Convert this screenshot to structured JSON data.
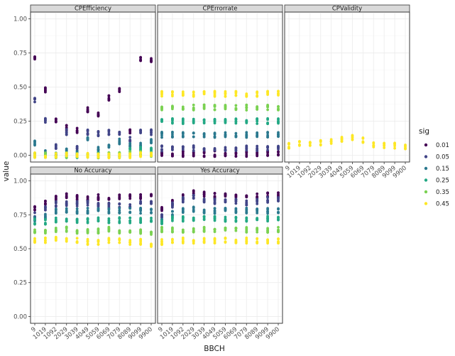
{
  "chart_data": {
    "type": "scatter",
    "xlabel": "BBCH",
    "ylabel": "value",
    "categories": [
      "9",
      "1019",
      "1092",
      "2029",
      "3039",
      "4049",
      "5059",
      "6069",
      "7079",
      "8089",
      "9099",
      "9900"
    ],
    "ylim": [
      -0.05,
      1.05
    ],
    "yticks": [
      "0.00",
      "0.25",
      "0.50",
      "0.75",
      "1.00"
    ],
    "grid": true,
    "legend": {
      "title": "sig",
      "position": "right",
      "levels": [
        {
          "label": "0.01",
          "color": "#440154"
        },
        {
          "label": "0.05",
          "color": "#414487"
        },
        {
          "label": "0.15",
          "color": "#2A788E"
        },
        {
          "label": "0.25",
          "color": "#22A884"
        },
        {
          "label": "0.35",
          "color": "#7AD151"
        },
        {
          "label": "0.45",
          "color": "#FDE725"
        }
      ]
    },
    "panels": [
      {
        "name": "CPEfficiency",
        "series": [
          {
            "sig": "0.01",
            "values": [
              0.72,
              0.48,
              0.26,
              0.2,
              0.18,
              0.33,
              0.3,
              0.42,
              0.48,
              0.18,
              0.7,
              0.7
            ]
          },
          {
            "sig": "0.05",
            "values": [
              0.4,
              0.26,
              0.06,
              0.17,
              0.05,
              0.17,
              0.16,
              0.17,
              0.17,
              0.12,
              0.18,
              0.17
            ]
          },
          {
            "sig": "0.15",
            "values": [
              0.09,
              0.03,
              0.0,
              0.03,
              0.01,
              0.11,
              0.04,
              0.06,
              0.1,
              0.08,
              0.07,
              0.1
            ]
          },
          {
            "sig": "0.25",
            "values": [
              0.0,
              0.0,
              0.0,
              0.0,
              0.0,
              0.0,
              0.0,
              0.0,
              0.0,
              0.04,
              0.04,
              0.04
            ]
          },
          {
            "sig": "0.35",
            "values": [
              0.0,
              0.0,
              0.0,
              0.0,
              0.0,
              0.0,
              0.0,
              0.0,
              0.0,
              0.01,
              0.01,
              0.01
            ]
          },
          {
            "sig": "0.45",
            "values": [
              0.0,
              0.0,
              0.0,
              0.0,
              0.0,
              0.0,
              0.0,
              0.0,
              0.0,
              0.0,
              0.0,
              0.0
            ]
          }
        ]
      },
      {
        "name": "CPErrorrate",
        "series": [
          {
            "sig": "0.01",
            "values": [
              0.01,
              0.01,
              0.01,
              0.01,
              0.01,
              0.01,
              0.01,
              0.01,
              0.01,
              0.01,
              0.01,
              0.01
            ]
          },
          {
            "sig": "0.05",
            "values": [
              0.05,
              0.05,
              0.05,
              0.05,
              0.05,
              0.05,
              0.05,
              0.05,
              0.05,
              0.05,
              0.05,
              0.05
            ]
          },
          {
            "sig": "0.15",
            "values": [
              0.15,
              0.15,
              0.15,
              0.15,
              0.15,
              0.15,
              0.15,
              0.15,
              0.15,
              0.15,
              0.15,
              0.15
            ]
          },
          {
            "sig": "0.25",
            "values": [
              0.25,
              0.25,
              0.25,
              0.25,
              0.25,
              0.25,
              0.25,
              0.25,
              0.25,
              0.25,
              0.25,
              0.25
            ]
          },
          {
            "sig": "0.35",
            "values": [
              0.35,
              0.35,
              0.35,
              0.35,
              0.35,
              0.35,
              0.35,
              0.35,
              0.35,
              0.35,
              0.35,
              0.35
            ]
          },
          {
            "sig": "0.45",
            "values": [
              0.45,
              0.45,
              0.45,
              0.45,
              0.45,
              0.45,
              0.45,
              0.45,
              0.45,
              0.45,
              0.45,
              0.45
            ]
          }
        ]
      },
      {
        "name": "CPValidity",
        "series": [
          {
            "sig": "0.45",
            "values": [
              0.07,
              0.09,
              0.08,
              0.09,
              0.1,
              0.12,
              0.13,
              0.11,
              0.08,
              0.07,
              0.07,
              0.06
            ]
          }
        ]
      },
      {
        "name": "No Accuracy",
        "series": [
          {
            "sig": "0.01",
            "values": [
              0.8,
              0.84,
              0.87,
              0.89,
              0.88,
              0.87,
              0.88,
              0.88,
              0.88,
              0.88,
              0.88,
              0.89
            ]
          },
          {
            "sig": "0.05",
            "values": [
              0.75,
              0.8,
              0.83,
              0.83,
              0.83,
              0.84,
              0.82,
              0.82,
              0.82,
              0.82,
              0.83,
              0.83
            ]
          },
          {
            "sig": "0.15",
            "values": [
              0.72,
              0.74,
              0.78,
              0.78,
              0.78,
              0.78,
              0.79,
              0.78,
              0.78,
              0.78,
              0.78,
              0.78
            ]
          },
          {
            "sig": "0.25",
            "values": [
              0.7,
              0.7,
              0.71,
              0.71,
              0.71,
              0.71,
              0.71,
              0.71,
              0.71,
              0.71,
              0.71,
              0.71
            ]
          },
          {
            "sig": "0.35",
            "values": [
              0.63,
              0.63,
              0.64,
              0.64,
              0.63,
              0.63,
              0.63,
              0.64,
              0.63,
              0.63,
              0.62,
              0.62
            ]
          },
          {
            "sig": "0.45",
            "values": [
              0.56,
              0.56,
              0.57,
              0.57,
              0.56,
              0.55,
              0.55,
              0.56,
              0.56,
              0.55,
              0.55,
              0.53
            ]
          }
        ]
      },
      {
        "name": "Yes Accuracy",
        "series": [
          {
            "sig": "0.01",
            "values": [
              0.8,
              0.84,
              0.88,
              0.91,
              0.9,
              0.89,
              0.89,
              0.88,
              0.88,
              0.89,
              0.9,
              0.9
            ]
          },
          {
            "sig": "0.05",
            "values": [
              0.74,
              0.82,
              0.86,
              0.89,
              0.86,
              0.85,
              0.85,
              0.85,
              0.84,
              0.85,
              0.86,
              0.86
            ]
          },
          {
            "sig": "0.15",
            "values": [
              0.7,
              0.76,
              0.78,
              0.79,
              0.78,
              0.78,
              0.78,
              0.78,
              0.78,
              0.78,
              0.78,
              0.78
            ]
          },
          {
            "sig": "0.25",
            "values": [
              0.7,
              0.72,
              0.72,
              0.72,
              0.72,
              0.72,
              0.72,
              0.72,
              0.72,
              0.72,
              0.72,
              0.72
            ]
          },
          {
            "sig": "0.35",
            "values": [
              0.64,
              0.64,
              0.64,
              0.64,
              0.64,
              0.64,
              0.64,
              0.64,
              0.64,
              0.64,
              0.64,
              0.64
            ]
          },
          {
            "sig": "0.45",
            "values": [
              0.55,
              0.56,
              0.56,
              0.56,
              0.56,
              0.56,
              0.56,
              0.56,
              0.56,
              0.56,
              0.56,
              0.56
            ]
          }
        ]
      }
    ]
  }
}
